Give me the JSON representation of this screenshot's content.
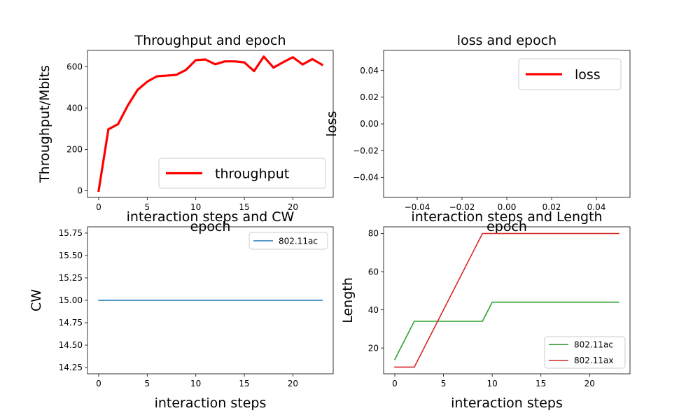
{
  "chart_data": [
    {
      "type": "line",
      "title": "Throughput and epoch",
      "xlabel": "epoch",
      "ylabel": "Throughput/Mbits",
      "xlim": [
        -1.15,
        24.15
      ],
      "ylim": [
        -32,
        678
      ],
      "xticks": [
        0,
        5,
        10,
        15,
        20
      ],
      "yticks": [
        0,
        200,
        400,
        600
      ],
      "ytick_labels": [
        "0",
        "200",
        "400",
        "600"
      ],
      "x": [
        0,
        1,
        2,
        3,
        4,
        5,
        6,
        7,
        8,
        9,
        10,
        11,
        12,
        13,
        14,
        15,
        16,
        17,
        18,
        19,
        20,
        21,
        22,
        23
      ],
      "series": [
        {
          "name": "throughput",
          "color": "#ff0000",
          "values": [
            0,
            297,
            322,
            412,
            487,
            527,
            553,
            556,
            560,
            584,
            631,
            634,
            611,
            625,
            625,
            620,
            578,
            648,
            595,
            621,
            645,
            610,
            636,
            609
          ]
        }
      ],
      "legend": "lower-right",
      "grid": false
    },
    {
      "type": "line",
      "title": "loss and epoch",
      "xlabel": "epoch",
      "ylabel": "loss",
      "xlim": [
        -0.055,
        0.055
      ],
      "ylim": [
        -0.055,
        0.055
      ],
      "xticks": [
        -0.04,
        -0.02,
        0.0,
        0.02,
        0.04
      ],
      "xtick_labels": [
        "−0.04",
        "−0.02",
        "0.00",
        "0.02",
        "0.04"
      ],
      "yticks": [
        -0.04,
        -0.02,
        0.0,
        0.02,
        0.04
      ],
      "ytick_labels": [
        "−0.04",
        "−0.02",
        "0.00",
        "0.02",
        "0.04"
      ],
      "x": [],
      "series": [
        {
          "name": "loss",
          "color": "#ff0000",
          "values": []
        }
      ],
      "legend": "upper-right",
      "grid": false
    },
    {
      "type": "line",
      "title": "interaction steps and CW",
      "xlabel": "interaction steps",
      "ylabel": "CW",
      "xlim": [
        -1.15,
        24.15
      ],
      "ylim": [
        14.18,
        15.82
      ],
      "xticks": [
        0,
        5,
        10,
        15,
        20
      ],
      "yticks": [
        14.25,
        14.5,
        14.75,
        15.0,
        15.25,
        15.5,
        15.75
      ],
      "ytick_labels": [
        "14.25",
        "14.50",
        "14.75",
        "15.00",
        "15.25",
        "15.50",
        "15.75"
      ],
      "x": [
        0,
        1,
        2,
        3,
        4,
        5,
        6,
        7,
        8,
        9,
        10,
        11,
        12,
        13,
        14,
        15,
        16,
        17,
        18,
        19,
        20,
        21,
        22,
        23
      ],
      "series": [
        {
          "name": "802.11ac",
          "color": "#1f77b4",
          "values": [
            15,
            15,
            15,
            15,
            15,
            15,
            15,
            15,
            15,
            15,
            15,
            15,
            15,
            15,
            15,
            15,
            15,
            15,
            15,
            15,
            15,
            15,
            15,
            15
          ]
        }
      ],
      "legend": "upper-right",
      "grid": false
    },
    {
      "type": "line",
      "title": "interaction steps and Length",
      "xlabel": "interaction steps",
      "ylabel": "Length",
      "xlim": [
        -1.15,
        24.15
      ],
      "ylim": [
        6.5,
        83.5
      ],
      "xticks": [
        0,
        5,
        10,
        15,
        20
      ],
      "yticks": [
        20,
        40,
        60,
        80
      ],
      "ytick_labels": [
        "20",
        "40",
        "60",
        "80"
      ],
      "x": [
        0,
        1,
        2,
        3,
        4,
        5,
        6,
        7,
        8,
        9,
        10,
        11,
        12,
        13,
        14,
        15,
        16,
        17,
        18,
        19,
        20,
        21,
        22,
        23
      ],
      "series": [
        {
          "name": "802.11ac",
          "color": "#2ca02c",
          "values": [
            14,
            24,
            34,
            34,
            34,
            34,
            34,
            34,
            34,
            34,
            44,
            44,
            44,
            44,
            44,
            44,
            44,
            44,
            44,
            44,
            44,
            44,
            44,
            44
          ]
        },
        {
          "name": "802.11ax",
          "color": "#d62728",
          "values": [
            10,
            10,
            10,
            20,
            30,
            40,
            50,
            60,
            70,
            80,
            80,
            80,
            80,
            80,
            80,
            80,
            80,
            80,
            80,
            80,
            80,
            80,
            80,
            80
          ]
        }
      ],
      "legend": "lower-right",
      "grid": false
    }
  ]
}
